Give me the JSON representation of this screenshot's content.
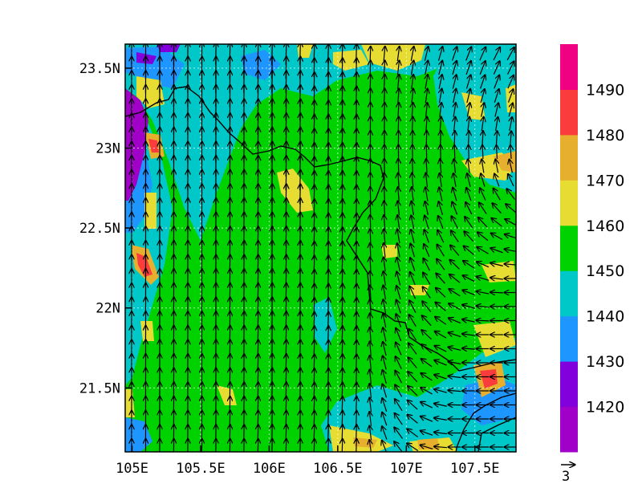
{
  "map": {
    "x_tick_labels": [
      "105E",
      "105.5E",
      "106E",
      "106.5E",
      "107E",
      "107.5E"
    ],
    "y_tick_labels": [
      "23.5N",
      "23N",
      "22.5N",
      "22N",
      "21.5N"
    ],
    "lon_ticks": [
      105,
      105.5,
      106,
      106.5,
      107,
      107.5
    ],
    "lat_ticks": [
      23.5,
      23,
      22.5,
      22,
      21.5
    ],
    "lon_range": [
      104.95,
      107.8
    ],
    "lat_range": [
      21.1,
      23.65
    ],
    "grid": "dotted",
    "vector_reference_label": "3",
    "background_color": "#00d200",
    "border_color": "#000000"
  },
  "colorbar": {
    "levels": [
      "1420",
      "1430",
      "1440",
      "1450",
      "1460",
      "1470",
      "1480",
      "1490"
    ],
    "colors": [
      "#a000c8",
      "#8200dc",
      "#1e96ff",
      "#00c8c8",
      "#00d200",
      "#e6dc32",
      "#e6af2d",
      "#fa3c3c",
      "#f00082"
    ]
  }
}
